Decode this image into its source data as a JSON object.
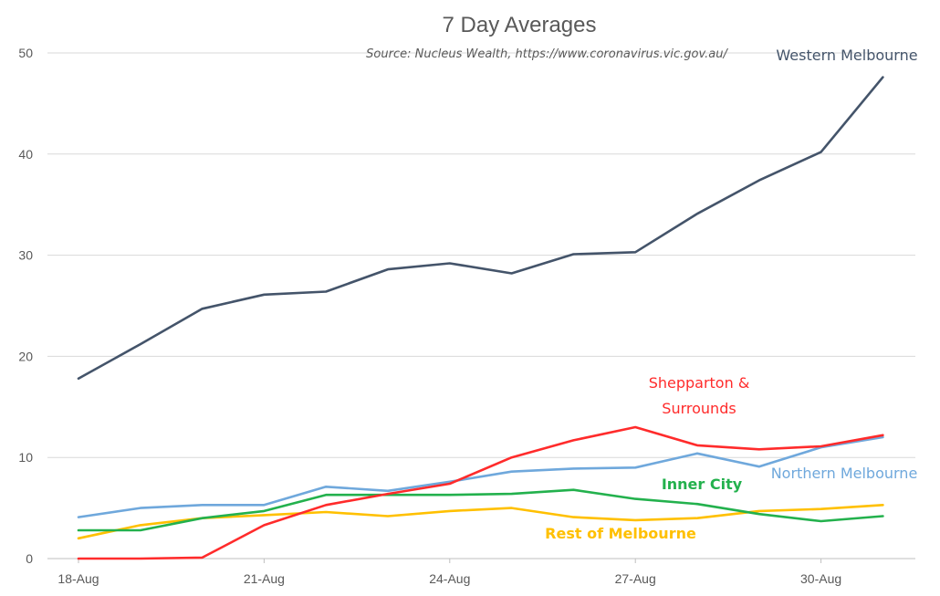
{
  "chart_data": {
    "type": "line",
    "title": "7 Day Averages",
    "subtitle": "Source: Nucleus Wealth, https://www.coronavirus.vic.gov.au/",
    "x": [
      "18-Aug",
      "19-Aug",
      "20-Aug",
      "21-Aug",
      "22-Aug",
      "23-Aug",
      "24-Aug",
      "25-Aug",
      "26-Aug",
      "27-Aug",
      "28-Aug",
      "29-Aug",
      "30-Aug",
      "31-Aug"
    ],
    "x_tick_labels": [
      "18-Aug",
      "21-Aug",
      "24-Aug",
      "27-Aug",
      "30-Aug"
    ],
    "y_ticks": [
      "0",
      "10",
      "20",
      "30",
      "40",
      "50"
    ],
    "ylim": [
      0,
      50
    ],
    "grid": true,
    "series": [
      {
        "name": "Western Melbourne",
        "color": "#44546A",
        "values": [
          17.8,
          21.2,
          24.7,
          26.1,
          26.4,
          28.6,
          29.2,
          28.2,
          30.1,
          30.3,
          34.1,
          37.4,
          40.2,
          47.6
        ]
      },
      {
        "name": "Shepparton & Surrounds",
        "label_lines": [
          "Shepparton &",
          "Surrounds"
        ],
        "color": "#FF2B2B",
        "values": [
          0,
          0,
          0.1,
          3.3,
          5.3,
          6.4,
          7.4,
          10.0,
          11.7,
          13.0,
          11.2,
          10.8,
          11.1,
          12.2
        ]
      },
      {
        "name": "Northern Melbourne",
        "color": "#6FA8DC",
        "values": [
          4.1,
          5.0,
          5.3,
          5.3,
          7.1,
          6.7,
          7.6,
          8.6,
          8.9,
          9.0,
          10.4,
          9.1,
          11.0,
          12.0
        ]
      },
      {
        "name": "Inner City",
        "color": "#23B14D",
        "values": [
          2.8,
          2.8,
          4.0,
          4.7,
          6.3,
          6.3,
          6.3,
          6.4,
          6.8,
          5.9,
          5.4,
          4.4,
          3.7,
          4.2
        ]
      },
      {
        "name": "Rest of Melbourne",
        "color": "#FFC000",
        "values": [
          2.0,
          3.3,
          4.0,
          4.3,
          4.6,
          4.2,
          4.7,
          5.0,
          4.1,
          3.8,
          4.0,
          4.7,
          4.9,
          5.3
        ]
      }
    ]
  }
}
